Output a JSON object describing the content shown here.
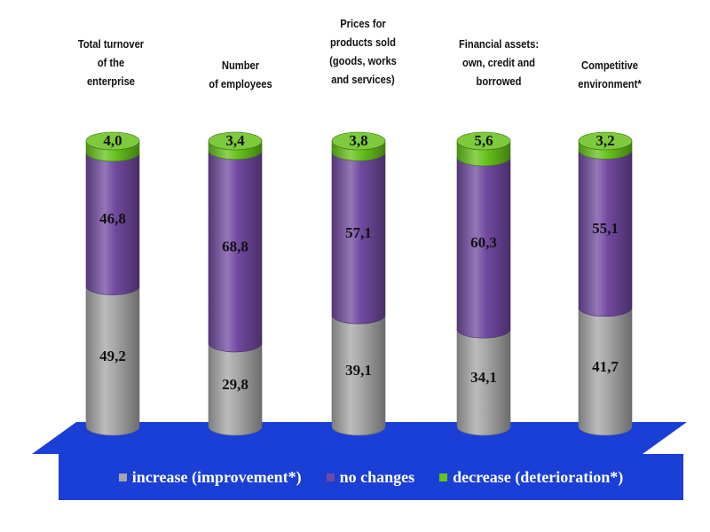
{
  "chart_data": {
    "type": "bar",
    "stacked": true,
    "categories": [
      "Total turnover\nof the\nenterprise",
      "Number\nof employees",
      "Prices for\nproducts sold\n(goods, works\nand services)",
      "Financial assets:\nown, credit and\nborrowed",
      "Competitive\nenvironment*"
    ],
    "series": [
      {
        "name": "increase (improvement*)",
        "color": "#a6a6a6",
        "values": [
          "49,2",
          "29,8",
          "39,1",
          "34,1",
          "41,7"
        ]
      },
      {
        "name": "no changes",
        "color": "#7149a0",
        "values": [
          "46,8",
          "68,8",
          "57,1",
          "60,3",
          "55,1"
        ]
      },
      {
        "name": "decrease (deterioration*)",
        "color": "#66c21b",
        "values": [
          "4,0",
          "3,4",
          "3,8",
          "5,6",
          "3,2"
        ]
      }
    ],
    "ylim": [
      0,
      100
    ],
    "legend_position": "bottom",
    "floor_color": "#1a3fd6"
  }
}
